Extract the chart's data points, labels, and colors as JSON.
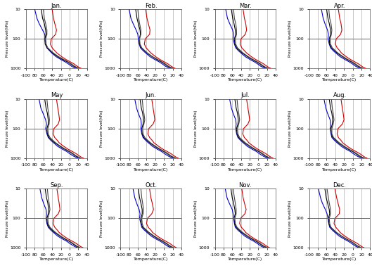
{
  "months": [
    "Jan.",
    "Feb.",
    "Mar.",
    "Apr.",
    "May",
    "Jun.",
    "Jul.",
    "Aug.",
    "Sep.",
    "Oct.",
    "Nov.",
    "Dec."
  ],
  "pressure_levels": [
    10,
    20,
    30,
    50,
    70,
    100,
    150,
    200,
    250,
    300,
    400,
    500,
    600,
    700,
    850,
    925,
    1000
  ],
  "temp_profiles": {
    "Jan": {
      "blue": [
        -80,
        -75,
        -70,
        -62,
        -57,
        -56,
        -54,
        -52,
        -46,
        -41,
        -31,
        -20,
        -10,
        -3,
        5,
        10,
        15
      ],
      "black1": [
        -65,
        -62,
        -58,
        -55,
        -54,
        -57,
        -56,
        -52,
        -45,
        -39,
        -27,
        -16,
        -5,
        2,
        10,
        15,
        20
      ],
      "black2": [
        -60,
        -58,
        -55,
        -52,
        -52,
        -55,
        -54,
        -50,
        -43,
        -37,
        -25,
        -13,
        -3,
        4,
        12,
        17,
        22
      ],
      "red": [
        -40,
        -37,
        -34,
        -30,
        -32,
        -42,
        -44,
        -40,
        -34,
        -29,
        -18,
        -8,
        2,
        10,
        18,
        22,
        27
      ]
    },
    "Feb": {
      "blue": [
        -80,
        -76,
        -71,
        -64,
        -60,
        -59,
        -57,
        -54,
        -48,
        -42,
        -32,
        -21,
        -11,
        -4,
        4,
        9,
        14
      ],
      "black1": [
        -65,
        -62,
        -59,
        -55,
        -54,
        -57,
        -56,
        -52,
        -45,
        -39,
        -27,
        -16,
        -6,
        1,
        9,
        14,
        19
      ],
      "black2": [
        -60,
        -58,
        -56,
        -53,
        -53,
        -56,
        -55,
        -51,
        -44,
        -38,
        -26,
        -14,
        -4,
        3,
        11,
        16,
        21
      ],
      "red": [
        -42,
        -39,
        -36,
        -32,
        -33,
        -43,
        -45,
        -41,
        -35,
        -30,
        -19,
        -9,
        1,
        9,
        17,
        21,
        26
      ]
    },
    "Mar": {
      "blue": [
        -75,
        -71,
        -66,
        -59,
        -57,
        -58,
        -55,
        -52,
        -46,
        -40,
        -30,
        -19,
        -9,
        -2,
        6,
        11,
        16
      ],
      "black1": [
        -62,
        -59,
        -56,
        -53,
        -52,
        -55,
        -54,
        -50,
        -43,
        -37,
        -25,
        -14,
        -4,
        3,
        11,
        16,
        21
      ],
      "black2": [
        -57,
        -55,
        -52,
        -50,
        -50,
        -53,
        -52,
        -48,
        -41,
        -35,
        -23,
        -12,
        -2,
        5,
        13,
        18,
        23
      ],
      "red": [
        -35,
        -32,
        -29,
        -27,
        -30,
        -40,
        -42,
        -38,
        -32,
        -27,
        -16,
        -6,
        4,
        12,
        20,
        24,
        29
      ]
    },
    "Apr": {
      "blue": [
        -72,
        -68,
        -64,
        -58,
        -56,
        -57,
        -54,
        -51,
        -45,
        -39,
        -29,
        -18,
        -8,
        -1,
        7,
        12,
        17
      ],
      "black1": [
        -60,
        -57,
        -54,
        -51,
        -51,
        -54,
        -53,
        -49,
        -42,
        -36,
        -24,
        -13,
        -3,
        4,
        12,
        17,
        22
      ],
      "black2": [
        -55,
        -53,
        -50,
        -48,
        -49,
        -52,
        -51,
        -47,
        -40,
        -34,
        -22,
        -11,
        -1,
        6,
        14,
        19,
        24
      ],
      "red": [
        -33,
        -30,
        -27,
        -25,
        -28,
        -38,
        -40,
        -36,
        -30,
        -26,
        -15,
        -5,
        5,
        13,
        21,
        25,
        30
      ]
    },
    "May": {
      "blue": [
        -70,
        -66,
        -61,
        -55,
        -53,
        -55,
        -52,
        -49,
        -43,
        -37,
        -27,
        -16,
        -6,
        0,
        9,
        14,
        19
      ],
      "black1": [
        -57,
        -54,
        -51,
        -49,
        -49,
        -52,
        -51,
        -47,
        -40,
        -34,
        -22,
        -11,
        -1,
        6,
        14,
        19,
        24
      ],
      "black2": [
        -52,
        -50,
        -48,
        -46,
        -47,
        -50,
        -49,
        -45,
        -38,
        -32,
        -20,
        -9,
        1,
        8,
        16,
        21,
        26
      ],
      "red": [
        -30,
        -27,
        -25,
        -23,
        -26,
        -36,
        -38,
        -34,
        -28,
        -24,
        -13,
        -3,
        7,
        15,
        23,
        27,
        32
      ]
    },
    "Jun": {
      "blue": [
        -67,
        -63,
        -59,
        -53,
        -52,
        -53,
        -51,
        -48,
        -42,
        -36,
        -26,
        -15,
        -5,
        1,
        10,
        15,
        20
      ],
      "black1": [
        -55,
        -52,
        -49,
        -47,
        -48,
        -51,
        -50,
        -46,
        -39,
        -33,
        -21,
        -10,
        0,
        7,
        15,
        20,
        25
      ],
      "black2": [
        -50,
        -48,
        -46,
        -44,
        -46,
        -49,
        -48,
        -44,
        -37,
        -31,
        -19,
        -8,
        2,
        9,
        17,
        22,
        27
      ],
      "red": [
        -28,
        -25,
        -23,
        -21,
        -25,
        -35,
        -37,
        -33,
        -27,
        -23,
        -12,
        -2,
        8,
        16,
        24,
        28,
        33
      ]
    },
    "Jul": {
      "blue": [
        -66,
        -62,
        -58,
        -52,
        -51,
        -52,
        -50,
        -47,
        -41,
        -35,
        -25,
        -14,
        -4,
        2,
        11,
        16,
        21
      ],
      "black1": [
        -54,
        -51,
        -48,
        -46,
        -47,
        -50,
        -49,
        -45,
        -38,
        -32,
        -20,
        -9,
        1,
        8,
        16,
        21,
        26
      ],
      "black2": [
        -49,
        -47,
        -45,
        -43,
        -45,
        -48,
        -47,
        -43,
        -36,
        -30,
        -18,
        -7,
        3,
        10,
        18,
        23,
        28
      ],
      "red": [
        -27,
        -24,
        -22,
        -20,
        -24,
        -34,
        -36,
        -32,
        -26,
        -22,
        -11,
        -1,
        9,
        17,
        25,
        29,
        34
      ]
    },
    "Aug": {
      "blue": [
        -66,
        -62,
        -58,
        -52,
        -51,
        -52,
        -50,
        -48,
        -42,
        -36,
        -26,
        -15,
        -5,
        1,
        10,
        15,
        20
      ],
      "black1": [
        -54,
        -51,
        -48,
        -46,
        -47,
        -50,
        -49,
        -46,
        -39,
        -33,
        -21,
        -10,
        0,
        7,
        15,
        20,
        25
      ],
      "black2": [
        -49,
        -47,
        -45,
        -43,
        -45,
        -48,
        -48,
        -44,
        -37,
        -31,
        -19,
        -8,
        2,
        9,
        17,
        22,
        27
      ],
      "red": [
        -27,
        -24,
        -22,
        -20,
        -24,
        -34,
        -36,
        -33,
        -27,
        -23,
        -12,
        -2,
        8,
        16,
        24,
        28,
        33
      ]
    },
    "Sep": {
      "blue": [
        -68,
        -64,
        -60,
        -54,
        -53,
        -54,
        -52,
        -49,
        -43,
        -37,
        -27,
        -16,
        -6,
        0,
        9,
        14,
        19
      ],
      "black1": [
        -56,
        -53,
        -50,
        -48,
        -49,
        -52,
        -51,
        -47,
        -40,
        -34,
        -22,
        -11,
        -1,
        6,
        14,
        19,
        24
      ],
      "black2": [
        -51,
        -49,
        -47,
        -45,
        -47,
        -50,
        -49,
        -45,
        -38,
        -32,
        -20,
        -9,
        1,
        8,
        16,
        21,
        26
      ],
      "red": [
        -29,
        -26,
        -24,
        -22,
        -26,
        -36,
        -38,
        -34,
        -28,
        -24,
        -13,
        -3,
        7,
        15,
        23,
        27,
        32
      ]
    },
    "Oct": {
      "blue": [
        -71,
        -67,
        -63,
        -57,
        -55,
        -56,
        -53,
        -51,
        -45,
        -39,
        -29,
        -18,
        -8,
        -1,
        7,
        12,
        17
      ],
      "black1": [
        -59,
        -56,
        -53,
        -50,
        -50,
        -53,
        -52,
        -49,
        -42,
        -36,
        -24,
        -13,
        -3,
        4,
        12,
        17,
        22
      ],
      "black2": [
        -53,
        -51,
        -49,
        -47,
        -48,
        -51,
        -50,
        -47,
        -40,
        -34,
        -22,
        -11,
        -1,
        6,
        14,
        19,
        24
      ],
      "red": [
        -33,
        -30,
        -27,
        -24,
        -28,
        -38,
        -40,
        -36,
        -30,
        -26,
        -15,
        -5,
        5,
        13,
        21,
        25,
        30
      ]
    },
    "Nov": {
      "blue": [
        -76,
        -72,
        -67,
        -60,
        -58,
        -57,
        -55,
        -53,
        -47,
        -41,
        -31,
        -20,
        -10,
        -3,
        5,
        10,
        15
      ],
      "black1": [
        -63,
        -60,
        -57,
        -54,
        -53,
        -56,
        -54,
        -51,
        -44,
        -38,
        -26,
        -15,
        -5,
        2,
        10,
        15,
        20
      ],
      "black2": [
        -58,
        -55,
        -53,
        -51,
        -51,
        -54,
        -53,
        -49,
        -42,
        -36,
        -24,
        -13,
        -3,
        4,
        12,
        17,
        22
      ],
      "red": [
        -38,
        -35,
        -32,
        -28,
        -31,
        -41,
        -43,
        -39,
        -33,
        -29,
        -18,
        -8,
        2,
        10,
        18,
        22,
        27
      ]
    },
    "Dec": {
      "blue": [
        -79,
        -74,
        -70,
        -63,
        -59,
        -57,
        -55,
        -53,
        -47,
        -41,
        -31,
        -20,
        -10,
        -3,
        5,
        10,
        15
      ],
      "black1": [
        -64,
        -61,
        -58,
        -54,
        -53,
        -56,
        -55,
        -51,
        -44,
        -38,
        -26,
        -15,
        -5,
        2,
        10,
        15,
        20
      ],
      "black2": [
        -59,
        -56,
        -54,
        -51,
        -51,
        -54,
        -53,
        -50,
        -43,
        -37,
        -25,
        -14,
        -4,
        3,
        11,
        16,
        21
      ],
      "red": [
        -41,
        -37,
        -34,
        -30,
        -31,
        -41,
        -43,
        -39,
        -33,
        -29,
        -18,
        -8,
        2,
        10,
        18,
        22,
        27
      ]
    }
  },
  "month_keys": [
    "Jan",
    "Feb",
    "Mar",
    "Apr",
    "May",
    "Jun",
    "Jul",
    "Aug",
    "Sep",
    "Oct",
    "Nov",
    "Dec"
  ],
  "xlim": [
    -100,
    40
  ],
  "xticks": [
    -100,
    -80,
    -60,
    -40,
    -20,
    0,
    20,
    40
  ],
  "ylim_log": [
    10,
    1000
  ],
  "yticks": [
    10,
    100,
    1000
  ],
  "hline_pressure": 100,
  "line_colors": {
    "blue": "#0000cc",
    "black1": "#000000",
    "black2": "#444444",
    "red": "#cc0000"
  },
  "line_width": 0.8,
  "xlabel": "Temperature(C)",
  "ylabel": "Pressure level(hPa)",
  "grid_color": "#999999",
  "hline_color": "#666666",
  "vline_color": "#999999"
}
